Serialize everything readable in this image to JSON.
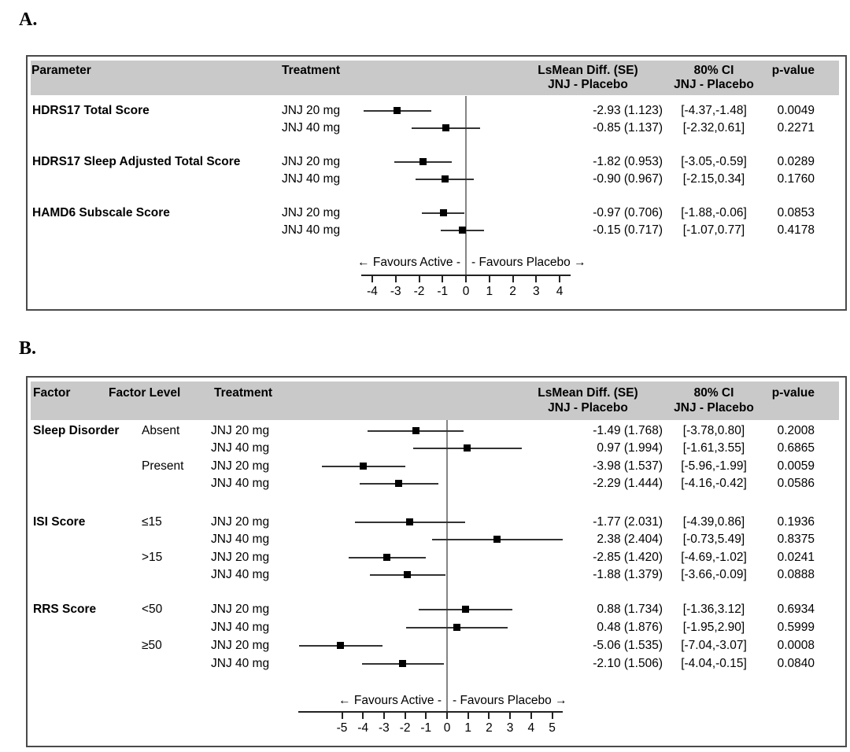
{
  "panel_a_label": "A.",
  "panel_b_label": "B.",
  "colors": {
    "header_bg": "#c9c9c9",
    "panel_border": "#4a4a4a",
    "zero_line": "#858585",
    "ci_line": "#333333",
    "marker": "#000000",
    "text": "#000000"
  },
  "chart_data": [
    {
      "type": "forest",
      "panel": "A",
      "header": {
        "col1": "Parameter",
        "col2": "Treatment",
        "lsmean_line1": "LsMean Diff. (SE)",
        "lsmean_line2": "JNJ - Placebo",
        "ci_line1": "80% CI",
        "ci_line2": "JNJ - Placebo",
        "p": "p-value"
      },
      "axis": {
        "min": -4,
        "max": 4,
        "ticks": [
          -4,
          -3,
          -2,
          -1,
          0,
          1,
          2,
          3,
          4
        ],
        "favours_left": "← Favours Active -",
        "favours_right": "- Favours Placebo →"
      },
      "rows": [
        {
          "group": "HDRS17 Total Score",
          "treatment": "JNJ 20 mg",
          "est": -2.93,
          "lo": -4.37,
          "hi": -1.48,
          "lsmean_se": "-2.93 (1.123)",
          "ci": "[-4.37,-1.48]",
          "p": "0.0049"
        },
        {
          "group": "",
          "treatment": "JNJ 40 mg",
          "est": -0.85,
          "lo": -2.32,
          "hi": 0.61,
          "lsmean_se": "-0.85 (1.137)",
          "ci": "[-2.32,0.61]",
          "p": "0.2271"
        },
        {
          "group": "HDRS17 Sleep Adjusted Total Score",
          "treatment": "JNJ 20 mg",
          "est": -1.82,
          "lo": -3.05,
          "hi": -0.59,
          "lsmean_se": "-1.82 (0.953)",
          "ci": "[-3.05,-0.59]",
          "p": "0.0289"
        },
        {
          "group": "",
          "treatment": "JNJ 40 mg",
          "est": -0.9,
          "lo": -2.15,
          "hi": 0.34,
          "lsmean_se": "-0.90 (0.967)",
          "ci": "[-2.15,0.34]",
          "p": "0.1760"
        },
        {
          "group": "HAMD6 Subscale Score",
          "treatment": "JNJ 20 mg",
          "est": -0.97,
          "lo": -1.88,
          "hi": -0.06,
          "lsmean_se": "-0.97 (0.706)",
          "ci": "[-1.88,-0.06]",
          "p": "0.0853"
        },
        {
          "group": "",
          "treatment": "JNJ 40 mg",
          "est": -0.15,
          "lo": -1.07,
          "hi": 0.77,
          "lsmean_se": "-0.15 (0.717)",
          "ci": "[-1.07,0.77]",
          "p": "0.4178"
        }
      ]
    },
    {
      "type": "forest",
      "panel": "B",
      "header": {
        "col1": "Factor",
        "col2": "Factor Level",
        "col3": "Treatment",
        "lsmean_line1": "LsMean Diff. (SE)",
        "lsmean_line2": "JNJ - Placebo",
        "ci_line1": "80% CI",
        "ci_line2": "JNJ - Placebo",
        "p": "p-value"
      },
      "axis": {
        "min": -5,
        "max": 5,
        "ticks": [
          -5,
          -4,
          -3,
          -2,
          -1,
          0,
          1,
          2,
          3,
          4,
          5
        ],
        "favours_left": "← Favours Active -",
        "favours_right": "- Favours Placebo →"
      },
      "rows": [
        {
          "factor": "Sleep Disorder",
          "level": "Absent",
          "treatment": "JNJ 20 mg",
          "est": -1.49,
          "lo": -3.78,
          "hi": 0.8,
          "lsmean_se": "-1.49 (1.768)",
          "ci": "[-3.78,0.80]",
          "p": "0.2008"
        },
        {
          "factor": "",
          "level": "",
          "treatment": "JNJ 40 mg",
          "est": 0.97,
          "lo": -1.61,
          "hi": 3.55,
          "lsmean_se": "0.97 (1.994)",
          "ci": "[-1.61,3.55]",
          "p": "0.6865"
        },
        {
          "factor": "",
          "level": "Present",
          "treatment": "JNJ 20 mg",
          "est": -3.98,
          "lo": -5.96,
          "hi": -1.99,
          "lsmean_se": "-3.98 (1.537)",
          "ci": "[-5.96,-1.99]",
          "p": "0.0059"
        },
        {
          "factor": "",
          "level": "",
          "treatment": "JNJ 40 mg",
          "est": -2.29,
          "lo": -4.16,
          "hi": -0.42,
          "lsmean_se": "-2.29 (1.444)",
          "ci": "[-4.16,-0.42]",
          "p": "0.0586"
        },
        {
          "factor": "ISI Score",
          "level": "≤15",
          "treatment": "JNJ 20 mg",
          "est": -1.77,
          "lo": -4.39,
          "hi": 0.86,
          "lsmean_se": "-1.77 (2.031)",
          "ci": "[-4.39,0.86]",
          "p": "0.1936"
        },
        {
          "factor": "",
          "level": "",
          "treatment": "JNJ 40 mg",
          "est": 2.38,
          "lo": -0.73,
          "hi": 5.49,
          "lsmean_se": "2.38 (2.404)",
          "ci": "[-0.73,5.49]",
          "p": "0.8375"
        },
        {
          "factor": "",
          "level": ">15",
          "treatment": "JNJ 20 mg",
          "est": -2.85,
          "lo": -4.69,
          "hi": -1.02,
          "lsmean_se": "-2.85 (1.420)",
          "ci": "[-4.69,-1.02]",
          "p": "0.0241"
        },
        {
          "factor": "",
          "level": "",
          "treatment": "JNJ 40 mg",
          "est": -1.88,
          "lo": -3.66,
          "hi": -0.09,
          "lsmean_se": "-1.88 (1.379)",
          "ci": "[-3.66,-0.09]",
          "p": "0.0888"
        },
        {
          "factor": "RRS Score",
          "level": "<50",
          "treatment": "JNJ 20 mg",
          "est": 0.88,
          "lo": -1.36,
          "hi": 3.12,
          "lsmean_se": "0.88 (1.734)",
          "ci": "[-1.36,3.12]",
          "p": "0.6934"
        },
        {
          "factor": "",
          "level": "",
          "treatment": "JNJ 40 mg",
          "est": 0.48,
          "lo": -1.95,
          "hi": 2.9,
          "lsmean_se": "0.48 (1.876)",
          "ci": "[-1.95,2.90]",
          "p": "0.5999"
        },
        {
          "factor": "",
          "level": "≥50",
          "treatment": "JNJ 20 mg",
          "est": -5.06,
          "lo": -7.04,
          "hi": -3.07,
          "lsmean_se": "-5.06 (1.535)",
          "ci": "[-7.04,-3.07]",
          "p": "0.0008"
        },
        {
          "factor": "",
          "level": "",
          "treatment": "JNJ 40 mg",
          "est": -2.1,
          "lo": -4.04,
          "hi": -0.15,
          "lsmean_se": "-2.10 (1.506)",
          "ci": "[-4.04,-0.15]",
          "p": "0.0840"
        }
      ]
    }
  ]
}
